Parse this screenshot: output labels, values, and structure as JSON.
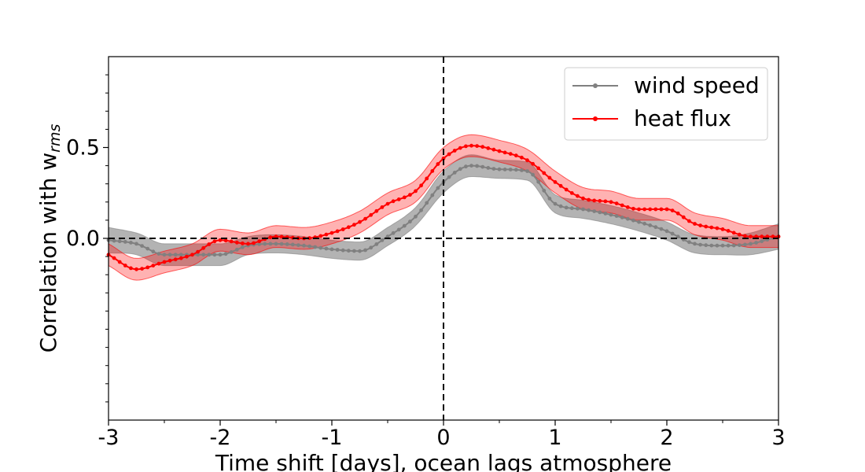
{
  "chart_data": {
    "type": "line",
    "title": "",
    "xlabel": "Time shift [days], ocean lags atmosphere",
    "ylabel_main": "Correlation with w",
    "ylabel_sub": "rms",
    "xlim": [
      -3,
      3
    ],
    "ylim": [
      -1.0,
      1.0
    ],
    "x_ticks": [
      -3,
      -2,
      -1,
      0,
      1,
      2,
      3
    ],
    "x_tick_labels": [
      "-3",
      "-2",
      "-1",
      "0",
      "1",
      "2",
      "3"
    ],
    "y_ticks": [
      0.0,
      0.5
    ],
    "y_tick_labels": [
      "0.0",
      "0.5"
    ],
    "grid": false,
    "legend_position": "top-right",
    "reference_lines": [
      {
        "orientation": "horizontal",
        "value": 0.0,
        "style": "dashed",
        "color": "#000000"
      },
      {
        "orientation": "vertical",
        "value": 0.0,
        "style": "dashed",
        "color": "#000000"
      }
    ],
    "x": [
      -3.0,
      -2.75,
      -2.5,
      -2.25,
      -2.0,
      -1.75,
      -1.5,
      -1.25,
      -1.0,
      -0.75,
      -0.5,
      -0.25,
      0.0,
      0.25,
      0.5,
      0.75,
      1.0,
      1.25,
      1.5,
      1.75,
      2.0,
      2.25,
      2.5,
      2.75,
      3.0
    ],
    "series": [
      {
        "name": "wind speed",
        "color": "#808080",
        "band_color": "#808080",
        "values": [
          -0.01,
          -0.03,
          -0.09,
          -0.09,
          -0.09,
          -0.04,
          -0.03,
          -0.04,
          -0.06,
          -0.07,
          0.01,
          0.12,
          0.31,
          0.4,
          0.38,
          0.37,
          0.19,
          0.16,
          0.13,
          0.09,
          0.04,
          -0.03,
          -0.04,
          -0.03,
          0.01
        ],
        "band_halfwidth": [
          0.07,
          0.06,
          0.06,
          0.06,
          0.06,
          0.05,
          0.05,
          0.05,
          0.05,
          0.05,
          0.05,
          0.05,
          0.06,
          0.06,
          0.05,
          0.05,
          0.05,
          0.05,
          0.05,
          0.05,
          0.05,
          0.05,
          0.05,
          0.06,
          0.07
        ]
      },
      {
        "name": "heat flux",
        "color": "#ff0000",
        "band_color": "#ff0000",
        "values": [
          -0.09,
          -0.17,
          -0.13,
          -0.09,
          -0.01,
          -0.03,
          0.01,
          0.0,
          0.03,
          0.09,
          0.19,
          0.26,
          0.44,
          0.51,
          0.48,
          0.43,
          0.31,
          0.22,
          0.2,
          0.16,
          0.16,
          0.08,
          0.05,
          0.01,
          0.01
        ],
        "band_halfwidth": [
          0.06,
          0.06,
          0.06,
          0.06,
          0.06,
          0.06,
          0.06,
          0.06,
          0.06,
          0.06,
          0.06,
          0.06,
          0.06,
          0.06,
          0.06,
          0.06,
          0.06,
          0.06,
          0.06,
          0.06,
          0.06,
          0.06,
          0.06,
          0.06,
          0.06
        ]
      }
    ]
  }
}
